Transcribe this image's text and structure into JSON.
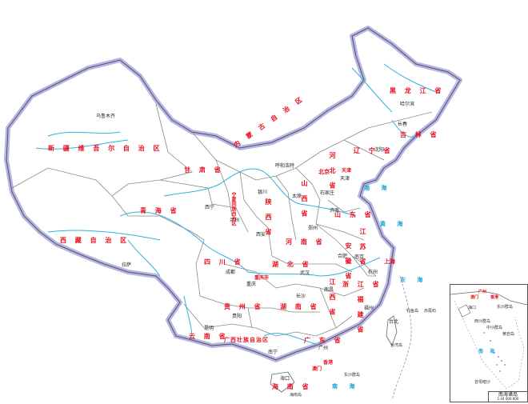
{
  "map": {
    "provinces": [
      {
        "label": "黑 龙 江 省"
      },
      {
        "label": "吉 林 省"
      },
      {
        "label": "辽 宁 省"
      },
      {
        "label": "内 蒙 古 自 治 区"
      },
      {
        "label": "新 疆 维 吾 尔 自 治 区"
      },
      {
        "label": "甘 肃 省"
      },
      {
        "label": "青 海 省"
      },
      {
        "label": "西 藏 自 治 区"
      },
      {
        "label": "四 川 省"
      },
      {
        "label": "宁夏回族自治区"
      },
      {
        "label": "陕 西 省"
      },
      {
        "label": "山 西 省"
      },
      {
        "label": "河 北 省"
      },
      {
        "label": "山 东 省"
      },
      {
        "label": "河 南 省"
      },
      {
        "label": "江 苏 省"
      },
      {
        "label": "安 徽 省"
      },
      {
        "label": "湖 北 省"
      },
      {
        "label": "浙 江 省"
      },
      {
        "label": "江 西 省"
      },
      {
        "label": "湖 南 省"
      },
      {
        "label": "贵 州 省"
      },
      {
        "label": "云 南 省"
      },
      {
        "label": "广西壮族自治区"
      },
      {
        "label": "广 东 省"
      },
      {
        "label": "福 建 省"
      },
      {
        "label": "海 南 省"
      },
      {
        "label": "北京"
      },
      {
        "label": "天津"
      },
      {
        "label": "上海"
      },
      {
        "label": "重庆市"
      },
      {
        "label": "香港"
      },
      {
        "label": "澳门"
      }
    ],
    "cities": [
      {
        "label": "乌鲁木齐"
      },
      {
        "label": "拉萨"
      },
      {
        "label": "西宁"
      },
      {
        "label": "兰州"
      },
      {
        "label": "银川"
      },
      {
        "label": "呼和浩特"
      },
      {
        "label": "哈尔滨"
      },
      {
        "label": "长春"
      },
      {
        "label": "沈阳"
      },
      {
        "label": "石家庄"
      },
      {
        "label": "太原"
      },
      {
        "label": "济南"
      },
      {
        "label": "郑州"
      },
      {
        "label": "西安"
      },
      {
        "label": "成都"
      },
      {
        "label": "重庆"
      },
      {
        "label": "武汉"
      },
      {
        "label": "合肥"
      },
      {
        "label": "南京"
      },
      {
        "label": "杭州"
      },
      {
        "label": "长沙"
      },
      {
        "label": "南昌"
      },
      {
        "label": "福州"
      },
      {
        "label": "贵阳"
      },
      {
        "label": "昆明"
      },
      {
        "label": "南宁"
      },
      {
        "label": "广州"
      },
      {
        "label": "海口"
      },
      {
        "label": "台北"
      },
      {
        "label": "天津"
      }
    ],
    "seas": [
      {
        "label": "渤 海"
      },
      {
        "label": "黄 海"
      },
      {
        "label": "东 海"
      },
      {
        "label": "南 海"
      }
    ],
    "islands": [
      {
        "label": "台湾岛"
      },
      {
        "label": "钓鱼岛"
      },
      {
        "label": "赤尾屿"
      },
      {
        "label": "东沙群岛"
      },
      {
        "label": "海南岛"
      }
    ],
    "inset": {
      "title": "南海诸岛",
      "scale": "1:44 000 000",
      "labels": [
        "广州",
        "香港",
        "澳门",
        "海口",
        "东沙群岛",
        "西沙群岛",
        "中沙群岛",
        "黄岩岛",
        "南 海",
        "曾母暗沙"
      ]
    },
    "colors": {
      "boundary": "#7a7a7a",
      "national_border": "#8a8ac8",
      "river": "#2db1e0",
      "province_label": "#e8101e"
    }
  }
}
